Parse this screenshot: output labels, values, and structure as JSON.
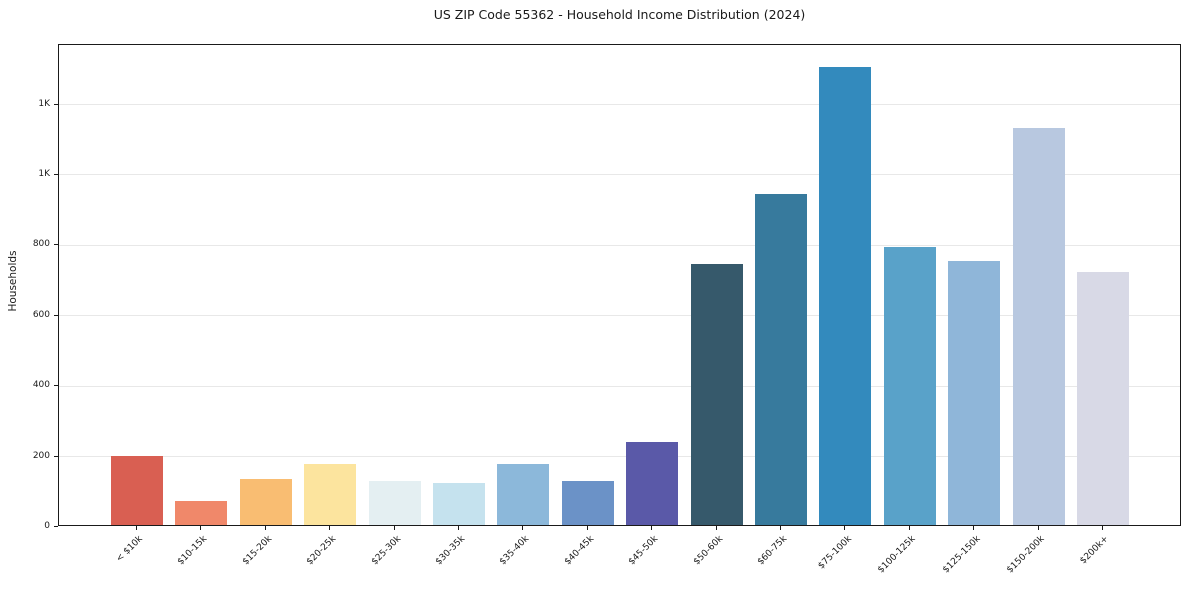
{
  "chart_data": {
    "type": "bar",
    "title": "US ZIP Code 55362 - Household Income Distribution (2024)",
    "ylabel": "Households",
    "xlabel": "",
    "categories": [
      "< $10k",
      "$10-15k",
      "$15-20k",
      "$20-25k",
      "$25-30k",
      "$30-35k",
      "$35-40k",
      "$40-45k",
      "$45-50k",
      "$50-60k",
      "$60-75k",
      "$75-100k",
      "$100-125k",
      "$125-150k",
      "$150-200k",
      "$200k+"
    ],
    "values": [
      195,
      68,
      130,
      173,
      125,
      118,
      172,
      124,
      235,
      740,
      940,
      1300,
      790,
      750,
      1128,
      720
    ],
    "bar_colors": [
      "#d95f52",
      "#f0886a",
      "#f9bd72",
      "#fce49e",
      "#e4eff2",
      "#c5e2ee",
      "#8cb8da",
      "#6b92c7",
      "#5a59a8",
      "#36596b",
      "#377a9d",
      "#338abd",
      "#59a2c9",
      "#8fb6d9",
      "#b8c8e0",
      "#d8d9e6"
    ],
    "y_ticks": {
      "values": [
        0,
        200,
        400,
        600,
        800,
        1000,
        1200
      ],
      "labels": [
        "0",
        "200",
        "400",
        "600",
        "800",
        "1K",
        "1K"
      ]
    },
    "ylim": [
      0,
      1369
    ],
    "grid": "horizontal",
    "legend": "none",
    "background_color": "#ffffff",
    "frame_color": "#1a1a1a",
    "grid_color": "#e8e8e8"
  }
}
